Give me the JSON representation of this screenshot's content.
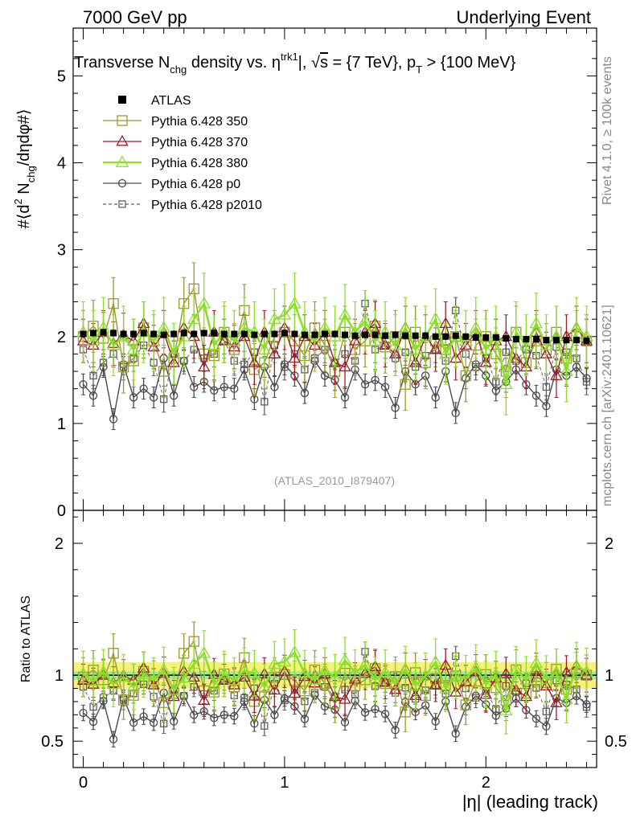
{
  "header": {
    "left": "7000 GeV pp",
    "right": "Underlying Event"
  },
  "side_labels": {
    "rivet": "Rivet 4.1.0, ≥ 100k events",
    "mcplots": "mcplots.cern.ch [arXiv:2401.10621]"
  },
  "colors": {
    "atlas": "#000000",
    "p350": "#9a9a2a",
    "p370": "#a01b2a",
    "p380": "#8ae028",
    "p0": "#4a4a4a",
    "p2010": "#606060",
    "band_yellow": "#f5f27a",
    "band_green": "#8cf0a0"
  },
  "chart_data": [
    {
      "type": "line",
      "panel": "main",
      "title": "Transverse N_chg density vs. η^trk1|, √s = {7 TeV}, p_T > {100 MeV}",
      "title_parts": {
        "t1": "Transverse N",
        "t1_sub": "chg",
        "t2": " density vs. ",
        "eta": "η",
        "eta_sup": "trk1",
        "t3": "|, ",
        "sqrt": "√",
        "s": "s",
        "t4": " = {7 TeV}, p",
        "pt_sub": "T",
        "t5": " > {100 MeV}"
      },
      "ylabel": "#⟨d² N_chg/dηdφ#⟩",
      "ylabel_parts": {
        "a": "#⟨d",
        "a_sup": "2",
        "b": " N",
        "b_sub": "chg",
        "c": "/dηdφ#⟩"
      },
      "xlabel": "",
      "xlim": [
        -0.05,
        2.55
      ],
      "ylim": [
        0,
        5.55
      ],
      "yticks": [
        0,
        1,
        2,
        3,
        4,
        5
      ],
      "watermark": "(ATLAS_2010_I879407)",
      "x": [
        0.0,
        0.05,
        0.1,
        0.15,
        0.2,
        0.25,
        0.3,
        0.35,
        0.4,
        0.45,
        0.5,
        0.55,
        0.6,
        0.65,
        0.7,
        0.75,
        0.8,
        0.85,
        0.9,
        0.95,
        1.0,
        1.05,
        1.1,
        1.15,
        1.2,
        1.25,
        1.3,
        1.35,
        1.4,
        1.45,
        1.5,
        1.55,
        1.6,
        1.65,
        1.7,
        1.75,
        1.8,
        1.85,
        1.9,
        1.95,
        2.0,
        2.05,
        2.1,
        2.15,
        2.2,
        2.25,
        2.3,
        2.35,
        2.4,
        2.45,
        2.5
      ],
      "series": [
        {
          "name": "ATLAS",
          "key": "atlas",
          "marker": "square-filled",
          "values": [
            2.03,
            2.04,
            2.05,
            2.04,
            2.03,
            2.03,
            2.04,
            2.03,
            2.02,
            2.03,
            2.04,
            2.03,
            2.04,
            2.04,
            2.03,
            2.03,
            2.03,
            2.02,
            2.03,
            2.03,
            2.04,
            2.03,
            2.02,
            2.02,
            2.03,
            2.03,
            2.02,
            2.01,
            2.02,
            2.02,
            2.01,
            2.02,
            2.01,
            2.01,
            2.01,
            2.0,
            2.0,
            2.01,
            2.0,
            1.99,
            1.99,
            1.99,
            1.98,
            1.97,
            1.97,
            1.97,
            1.96,
            1.96,
            1.96,
            1.96,
            1.95
          ],
          "errors": [
            0.04,
            0.04,
            0.04,
            0.04,
            0.04,
            0.04,
            0.04,
            0.04,
            0.04,
            0.04,
            0.04,
            0.04,
            0.04,
            0.04,
            0.04,
            0.04,
            0.04,
            0.04,
            0.04,
            0.04,
            0.04,
            0.04,
            0.04,
            0.04,
            0.04,
            0.04,
            0.04,
            0.04,
            0.04,
            0.04,
            0.04,
            0.04,
            0.04,
            0.04,
            0.04,
            0.04,
            0.04,
            0.04,
            0.04,
            0.04,
            0.04,
            0.04,
            0.04,
            0.04,
            0.04,
            0.04,
            0.04,
            0.04,
            0.04,
            0.04,
            0.04
          ]
        },
        {
          "name": "Pythia 6.428 350",
          "key": "p350",
          "marker": "square-open",
          "values": [
            2.0,
            2.12,
            1.98,
            2.38,
            1.65,
            1.72,
            2.1,
            1.95,
            1.6,
            1.75,
            2.38,
            2.55,
            1.8,
            1.78,
            2.05,
            1.85,
            2.3,
            1.62,
            1.7,
            2.0,
            2.05,
            1.95,
            1.78,
            2.1,
            1.9,
            1.6,
            2.05,
            1.85,
            1.95,
            2.12,
            1.88,
            2.0,
            1.45,
            2.05,
            1.7,
            1.95,
            1.85,
            2.0,
            1.55,
            1.9,
            2.0,
            1.8,
            1.6,
            2.05,
            1.7,
            1.95,
            1.85,
            2.05,
            1.75,
            2.0,
            1.95
          ],
          "errors": [
            0.3,
            0.3,
            0.3,
            0.3,
            0.3,
            0.3,
            0.3,
            0.3,
            0.3,
            0.3,
            0.3,
            0.3,
            0.3,
            0.3,
            0.3,
            0.3,
            0.3,
            0.3,
            0.3,
            0.3,
            0.3,
            0.3,
            0.3,
            0.3,
            0.3,
            0.3,
            0.3,
            0.3,
            0.3,
            0.3,
            0.3,
            0.3,
            0.3,
            0.3,
            0.3,
            0.3,
            0.3,
            0.3,
            0.3,
            0.3,
            0.3,
            0.3,
            0.3,
            0.3,
            0.3,
            0.3,
            0.3,
            0.3,
            0.3,
            0.3,
            0.3
          ]
        },
        {
          "name": "Pythia 6.428 370",
          "key": "p370",
          "marker": "triangle-open",
          "values": [
            1.95,
            1.9,
            2.05,
            1.92,
            2.02,
            1.95,
            2.15,
            1.88,
            2.05,
            1.7,
            2.1,
            2.0,
            1.65,
            2.05,
            1.95,
            1.88,
            2.0,
            1.7,
            2.05,
            1.8,
            2.1,
            1.75,
            2.0,
            1.9,
            2.05,
            1.7,
            1.65,
            1.95,
            2.05,
            2.15,
            1.9,
            1.8,
            2.1,
            1.7,
            2.0,
            1.85,
            2.15,
            1.75,
            1.9,
            2.05,
            1.7,
            1.95,
            2.0,
            1.75,
            1.65,
            2.05,
            1.8,
            1.55,
            2.0,
            2.1,
            1.95
          ],
          "errors": [
            0.25,
            0.25,
            0.25,
            0.25,
            0.25,
            0.25,
            0.25,
            0.25,
            0.25,
            0.25,
            0.25,
            0.25,
            0.25,
            0.25,
            0.25,
            0.25,
            0.25,
            0.25,
            0.25,
            0.25,
            0.25,
            0.25,
            0.25,
            0.25,
            0.25,
            0.25,
            0.25,
            0.25,
            0.25,
            0.25,
            0.25,
            0.25,
            0.25,
            0.25,
            0.25,
            0.25,
            0.25,
            0.25,
            0.25,
            0.25,
            0.25,
            0.25,
            0.25,
            0.25,
            0.25,
            0.25,
            0.25,
            0.25,
            0.25,
            0.25,
            0.25
          ]
        },
        {
          "name": "Pythia 6.428 380",
          "key": "p380",
          "marker": "triangle-open",
          "values": [
            2.05,
            1.95,
            2.1,
            1.9,
            2.0,
            1.85,
            2.05,
            1.95,
            2.1,
            1.8,
            2.0,
            2.2,
            2.38,
            1.9,
            2.05,
            1.95,
            2.1,
            2.05,
            1.85,
            2.2,
            2.25,
            2.38,
            2.05,
            1.95,
            2.1,
            2.0,
            2.25,
            2.05,
            2.18,
            1.95,
            2.05,
            1.9,
            2.1,
            1.85,
            2.0,
            2.2,
            1.8,
            2.0,
            1.95,
            2.1,
            1.85,
            2.0,
            1.45,
            2.05,
            1.9,
            2.15,
            1.9,
            2.0,
            1.6,
            2.1,
            2.0
          ],
          "errors": [
            0.35,
            0.35,
            0.35,
            0.35,
            0.35,
            0.35,
            0.35,
            0.35,
            0.35,
            0.35,
            0.35,
            0.35,
            0.35,
            0.35,
            0.35,
            0.35,
            0.35,
            0.35,
            0.35,
            0.35,
            0.35,
            0.35,
            0.35,
            0.35,
            0.35,
            0.35,
            0.35,
            0.35,
            0.35,
            0.35,
            0.35,
            0.35,
            0.35,
            0.35,
            0.35,
            0.35,
            0.35,
            0.35,
            0.35,
            0.35,
            0.35,
            0.35,
            0.35,
            0.35,
            0.35,
            0.35,
            0.35,
            0.35,
            0.35,
            0.35,
            0.35
          ]
        },
        {
          "name": "Pythia 6.428 p0",
          "key": "p0",
          "marker": "circle-open",
          "values": [
            1.45,
            1.32,
            1.65,
            1.05,
            1.68,
            1.3,
            1.4,
            1.3,
            1.75,
            1.32,
            1.72,
            1.42,
            1.48,
            1.38,
            1.42,
            1.4,
            1.62,
            1.28,
            1.65,
            1.42,
            1.68,
            1.55,
            1.35,
            1.72,
            1.55,
            1.5,
            1.3,
            1.62,
            1.45,
            1.5,
            1.42,
            1.18,
            1.6,
            1.45,
            1.55,
            1.3,
            1.6,
            1.12,
            1.52,
            1.68,
            1.55,
            1.38,
            1.48,
            1.62,
            1.45,
            1.32,
            1.2,
            1.62,
            1.55,
            1.65,
            1.52
          ],
          "errors": [
            0.12,
            0.12,
            0.12,
            0.12,
            0.12,
            0.12,
            0.12,
            0.12,
            0.12,
            0.12,
            0.12,
            0.12,
            0.12,
            0.12,
            0.12,
            0.12,
            0.12,
            0.12,
            0.12,
            0.12,
            0.12,
            0.12,
            0.12,
            0.12,
            0.12,
            0.12,
            0.12,
            0.12,
            0.12,
            0.12,
            0.12,
            0.12,
            0.12,
            0.12,
            0.12,
            0.12,
            0.12,
            0.12,
            0.12,
            0.12,
            0.12,
            0.12,
            0.12,
            0.12,
            0.12,
            0.12,
            0.12,
            0.12,
            0.12,
            0.12,
            0.12
          ]
        },
        {
          "name": "Pythia 6.428 p2010",
          "key": "p2010",
          "marker": "square-open-dashed",
          "values": [
            1.85,
            1.55,
            1.7,
            1.8,
            1.65,
            1.75,
            1.9,
            1.7,
            1.28,
            1.8,
            1.72,
            1.85,
            1.75,
            1.8,
            1.95,
            1.72,
            1.68,
            1.82,
            1.25,
            1.9,
            1.65,
            1.8,
            1.62,
            1.75,
            1.85,
            1.7,
            1.8,
            1.72,
            2.38,
            1.85,
            1.9,
            1.75,
            1.82,
            1.65,
            1.78,
            1.85,
            1.72,
            2.3,
            1.8,
            1.65,
            1.75,
            1.48,
            1.82,
            1.72,
            1.85,
            1.78,
            1.42,
            1.88,
            1.82,
            1.75,
            1.48
          ],
          "errors": [
            0.15,
            0.15,
            0.15,
            0.15,
            0.15,
            0.15,
            0.15,
            0.15,
            0.15,
            0.15,
            0.15,
            0.15,
            0.15,
            0.15,
            0.15,
            0.15,
            0.15,
            0.15,
            0.15,
            0.15,
            0.15,
            0.15,
            0.15,
            0.15,
            0.15,
            0.15,
            0.15,
            0.15,
            0.15,
            0.15,
            0.15,
            0.15,
            0.15,
            0.15,
            0.15,
            0.15,
            0.15,
            0.15,
            0.15,
            0.15,
            0.15,
            0.15,
            0.15,
            0.15,
            0.15,
            0.15,
            0.15,
            0.15,
            0.15,
            0.15,
            0.15
          ]
        }
      ]
    },
    {
      "type": "line",
      "panel": "ratio",
      "ylabel": "Ratio to ATLAS",
      "xlabel": "|η| (leading track)",
      "xlim": [
        -0.05,
        2.55
      ],
      "ylim": [
        0.3,
        2.25
      ],
      "yticks": [
        0.5,
        1,
        2
      ],
      "ytick_labels": [
        "0.5",
        "1",
        "2"
      ],
      "xticks": [
        0,
        1,
        2
      ],
      "xtick_labels": [
        "0",
        "1",
        "2"
      ],
      "band_outer": [
        0.9,
        1.1
      ],
      "band_inner": [
        0.97,
        1.03
      ],
      "reference": 1.0
    }
  ]
}
